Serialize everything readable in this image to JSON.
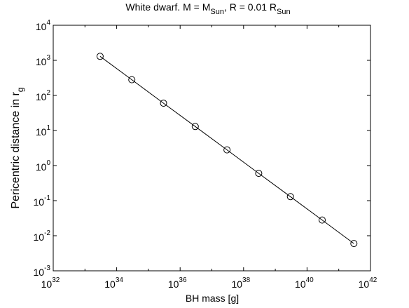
{
  "chart_data": {
    "type": "line",
    "title": {
      "main": "White dwarf. M = M",
      "sub1": "Sun",
      "mid": ", R = 0.01 R",
      "sub2": "Sun"
    },
    "xlabel": "BH mass [g]",
    "ylabel": {
      "main": "Pericentric distance in r",
      "sub": "g"
    },
    "x_scale": "log",
    "y_scale": "log",
    "xlim": [
      1e+32,
      1e+42
    ],
    "ylim": [
      0.001,
      10000
    ],
    "x_ticks": [
      {
        "base": "10",
        "exp": "32",
        "value": 1e+32
      },
      {
        "base": "10",
        "exp": "34",
        "value": 1e+34
      },
      {
        "base": "10",
        "exp": "36",
        "value": 1e+36
      },
      {
        "base": "10",
        "exp": "38",
        "value": 1e+38
      },
      {
        "base": "10",
        "exp": "40",
        "value": 1e+40
      },
      {
        "base": "10",
        "exp": "42",
        "value": 1e+42
      }
    ],
    "y_ticks": [
      {
        "base": "10",
        "exp": "-3",
        "value": 0.001
      },
      {
        "base": "10",
        "exp": "-2",
        "value": 0.01
      },
      {
        "base": "10",
        "exp": "-1",
        "value": 0.1
      },
      {
        "base": "10",
        "exp": "0",
        "value": 1
      },
      {
        "base": "10",
        "exp": "1",
        "value": 10
      },
      {
        "base": "10",
        "exp": "2",
        "value": 100
      },
      {
        "base": "10",
        "exp": "3",
        "value": 1000
      },
      {
        "base": "10",
        "exp": "4",
        "value": 10000
      }
    ],
    "grid": false,
    "series": [
      {
        "marker": "circle",
        "color": "#000000",
        "x": [
          3e+33,
          3e+34,
          3e+35,
          3e+36,
          3e+37,
          3e+38,
          3e+39,
          3e+40,
          3e+41
        ],
        "y": [
          1300,
          280,
          60,
          13,
          2.8,
          0.6,
          0.13,
          0.028,
          0.006
        ]
      }
    ]
  }
}
